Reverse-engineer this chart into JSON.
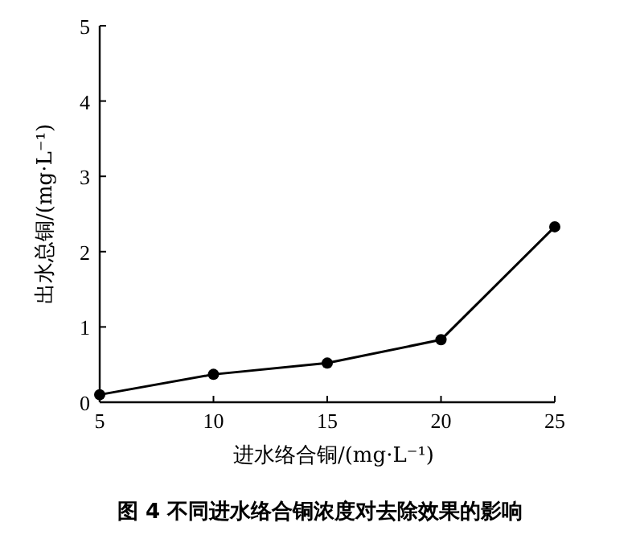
{
  "chart_data": {
    "type": "line",
    "title": "图 4   不同进水络合铜浓度对去除效果的影响",
    "xlabel": "进水络合铜/(mg·L⁻¹)",
    "ylabel": "出水总铜/(mg·L⁻¹)",
    "x": [
      5,
      10,
      15,
      20,
      25
    ],
    "series": [
      {
        "color": "#000000",
        "values": [
          0.1,
          0.37,
          0.52,
          0.83,
          2.33
        ]
      }
    ],
    "xlim": [
      5,
      25
    ],
    "xticks": [
      5,
      10,
      15,
      20,
      25
    ],
    "ylim": [
      0,
      5
    ],
    "yticks": [
      0,
      1,
      2,
      3,
      4,
      5
    ],
    "marker": "circle",
    "line_style": "solid",
    "grid": false
  }
}
